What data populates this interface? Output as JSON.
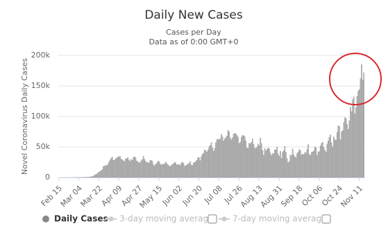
{
  "chart_data": {
    "type": "bar",
    "title": "Daily New Cases",
    "subtitle": [
      "Cases per Day",
      "Data as of 0:00 GMT+0"
    ],
    "y_label": "Novel Coronavirus Daily Cases",
    "ylim": [
      0,
      200000
    ],
    "yticks": [
      0,
      {
        "value": 50000,
        "label": "50k"
      },
      {
        "value": 100000,
        "label": "100k"
      },
      {
        "value": 150000,
        "label": "150k"
      },
      {
        "value": 200000,
        "label": "200k"
      }
    ],
    "grid": true,
    "legend_toggles": [
      "3-day moving average",
      "7-day moving average"
    ],
    "categories": [
      "Feb 15",
      null,
      null,
      null,
      null,
      null,
      null,
      null,
      null,
      null,
      null,
      null,
      null,
      null,
      null,
      null,
      null,
      null,
      "Mar 04",
      null,
      null,
      null,
      null,
      null,
      null,
      null,
      null,
      null,
      null,
      null,
      null,
      null,
      null,
      null,
      null,
      null,
      "Mar 22",
      null,
      null,
      null,
      null,
      null,
      null,
      null,
      null,
      null,
      null,
      null,
      null,
      null,
      null,
      null,
      null,
      null,
      "Apr 09",
      null,
      null,
      null,
      null,
      null,
      null,
      null,
      null,
      null,
      null,
      null,
      null,
      null,
      null,
      null,
      null,
      null,
      "Apr 27",
      null,
      null,
      null,
      null,
      null,
      null,
      null,
      null,
      null,
      null,
      null,
      null,
      null,
      null,
      null,
      null,
      null,
      "May 15",
      null,
      null,
      null,
      null,
      null,
      null,
      null,
      null,
      null,
      null,
      null,
      null,
      null,
      null,
      null,
      null,
      null,
      "Jun 02",
      null,
      null,
      null,
      null,
      null,
      null,
      null,
      null,
      null,
      null,
      null,
      null,
      null,
      null,
      null,
      null,
      null,
      "Jun 20",
      null,
      null,
      null,
      null,
      null,
      null,
      null,
      null,
      null,
      null,
      null,
      null,
      null,
      null,
      null,
      null,
      null,
      "Jul 08",
      null,
      null,
      null,
      null,
      null,
      null,
      null,
      null,
      null,
      null,
      null,
      null,
      null,
      null,
      null,
      null,
      null,
      "Jul 26",
      null,
      null,
      null,
      null,
      null,
      null,
      null,
      null,
      null,
      null,
      null,
      null,
      null,
      null,
      null,
      null,
      null,
      "Aug 13",
      null,
      null,
      null,
      null,
      null,
      null,
      null,
      null,
      null,
      null,
      null,
      null,
      null,
      null,
      null,
      null,
      null,
      "Aug 31",
      null,
      null,
      null,
      null,
      null,
      null,
      null,
      null,
      null,
      null,
      null,
      null,
      null,
      null,
      null,
      null,
      null,
      "Sep 18",
      null,
      null,
      null,
      null,
      null,
      null,
      null,
      null,
      null,
      null,
      null,
      null,
      null,
      null,
      null,
      null,
      null,
      "Oct 06",
      null,
      null,
      null,
      null,
      null,
      null,
      null,
      null,
      null,
      null,
      null,
      null,
      null,
      null,
      null,
      null,
      null,
      "Oct 24",
      null,
      null,
      null,
      null,
      null,
      null,
      null,
      null,
      null,
      null,
      null,
      null,
      null,
      null,
      null,
      null,
      null,
      "Nov 11",
      null,
      null,
      null,
      null
    ],
    "series": [
      {
        "name": "Daily Cases",
        "color": "#b4b4b4",
        "values": [
          0,
          0,
          0,
          0,
          0,
          0,
          1,
          0,
          0,
          1,
          0,
          0,
          1,
          0,
          2,
          3,
          5,
          8,
          30,
          60,
          80,
          100,
          110,
          140,
          290,
          350,
          420,
          590,
          810,
          1000,
          1700,
          2300,
          3500,
          4800,
          5600,
          7000,
          9000,
          9800,
          11100,
          12700,
          17800,
          18800,
          19600,
          19400,
          21300,
          25400,
          28800,
          31700,
          33600,
          28000,
          28400,
          30700,
          32100,
          33200,
          34200,
          34600,
          30200,
          28700,
          27500,
          26100,
          30300,
          31200,
          32600,
          28700,
          26500,
          29700,
          28100,
          33100,
          34100,
          32200,
          27100,
          26200,
          23800,
          24800,
          27300,
          29600,
          35100,
          29900,
          26400,
          24300,
          24800,
          23500,
          27800,
          28300,
          26600,
          20900,
          18800,
          22100,
          23200,
          26400,
          26300,
          22600,
          20400,
          21700,
          21400,
          22800,
          25600,
          22600,
          20700,
          19200,
          17900,
          19700,
          21500,
          22500,
          25400,
          23600,
          20700,
          21000,
          21100,
          19900,
          23800,
          25500,
          23100,
          18700,
          19400,
          20500,
          22300,
          22900,
          25900,
          20400,
          19800,
          23900,
          24500,
          26600,
          28500,
          32700,
          32500,
          27700,
          34500,
          38400,
          39900,
          45500,
          43800,
          41800,
          45300,
          50200,
          52800,
          57200,
          48700,
          43200,
          47300,
          56900,
          61900,
          62900,
          62000,
          63500,
          71000,
          66600,
          60000,
          63200,
          65300,
          67800,
          77300,
          74900,
          65000,
          61700,
          65000,
          70900,
          72400,
          71700,
          68800,
          66100,
          55800,
          58000,
          66200,
          69200,
          68600,
          67100,
          60100,
          48500,
          47700,
          56000,
          55400,
          57900,
          63300,
          54500,
          48100,
          47900,
          50000,
          55000,
          52000,
          64800,
          56000,
          44400,
          36500,
          47200,
          43400,
          46500,
          48100,
          47500,
          40200,
          36100,
          39100,
          39200,
          45600,
          45300,
          50000,
          39000,
          35000,
          42800,
          31500,
          41400,
          44000,
          50800,
          41500,
          31100,
          24300,
          26300,
          36600,
          35900,
          46700,
          37300,
          34100,
          32400,
          39100,
          41600,
          45700,
          44400,
          37000,
          38500,
          37100,
          41100,
          40200,
          46000,
          54000,
          38000,
          36200,
          41200,
          42000,
          43300,
          50000,
          49000,
          36400,
          42000,
          42600,
          51800,
          56100,
          57700,
          49400,
          44600,
          41700,
          55000,
          60000,
          65800,
          70000,
          56900,
          50200,
          66500,
          61900,
          61200,
          74000,
          85000,
          83700,
          62000,
          75000,
          77000,
          90000,
          98000,
          97000,
          87000,
          79000,
          93000,
          115000,
          108000,
          128000,
          132000,
          104000,
          115000,
          133000,
          142000,
          144000,
          162000,
          185000,
          160000,
          172000
        ]
      }
    ]
  }
}
